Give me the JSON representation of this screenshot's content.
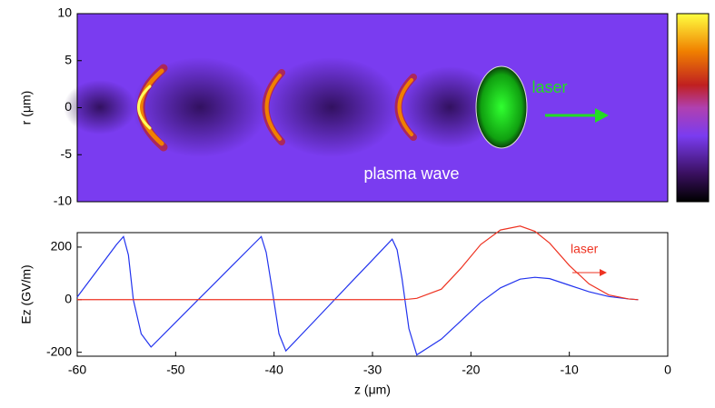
{
  "chart_data": [
    {
      "type": "heatmap",
      "y_label": "r (μm)",
      "ylim": [
        -10,
        10
      ],
      "yticks": [
        -10,
        -5,
        0,
        5,
        10
      ],
      "xlim": [
        -60,
        0
      ],
      "annotations": [
        {
          "text": "plasma wave",
          "color": "#ffffff"
        },
        {
          "text": "laser",
          "color": "#22dd22"
        }
      ]
    },
    {
      "type": "line",
      "x_label": "z (μm)",
      "y_label": "Ez (GV/m)",
      "xlim": [
        -60,
        0
      ],
      "xticks": [
        -60,
        -50,
        -40,
        -30,
        -20,
        -10,
        0
      ],
      "ylim": [
        -215,
        255
      ],
      "yticks": [
        -200,
        0,
        200
      ],
      "x": [
        -60,
        -58,
        -56,
        -55.3,
        -54.8,
        -54.3,
        -53.5,
        -52.5,
        -50,
        -48,
        -46,
        -44,
        -42,
        -41.3,
        -40.8,
        -40.2,
        -39.5,
        -38.8,
        -36,
        -34,
        -32,
        -30,
        -28,
        -27.5,
        -27,
        -26.3,
        -25.5,
        -23,
        -21,
        -19,
        -17,
        -15,
        -13.5,
        -12,
        -10,
        -8,
        -6,
        -4,
        -3
      ],
      "series": [
        {
          "name": "plasma wave",
          "color": "#2233ee",
          "values": [
            10,
            110,
            210,
            240,
            170,
            0,
            -130,
            -180,
            -86,
            -11,
            64,
            139,
            214,
            240,
            180,
            40,
            -130,
            -195,
            -85,
            -6,
            73,
            151,
            230,
            190,
            80,
            -110,
            -210,
            -150,
            -80,
            -10,
            45,
            78,
            85,
            80,
            55,
            30,
            12,
            3,
            0
          ]
        },
        {
          "name": "laser",
          "color": "#ee3322",
          "values": [
            0,
            0,
            0,
            0,
            0,
            0,
            0,
            0,
            0,
            0,
            0,
            0,
            0,
            0,
            0,
            0,
            0,
            0,
            0,
            0,
            0,
            0,
            0,
            0,
            0,
            2,
            5,
            40,
            120,
            210,
            265,
            280,
            260,
            215,
            130,
            60,
            18,
            3,
            0
          ]
        }
      ]
    }
  ]
}
